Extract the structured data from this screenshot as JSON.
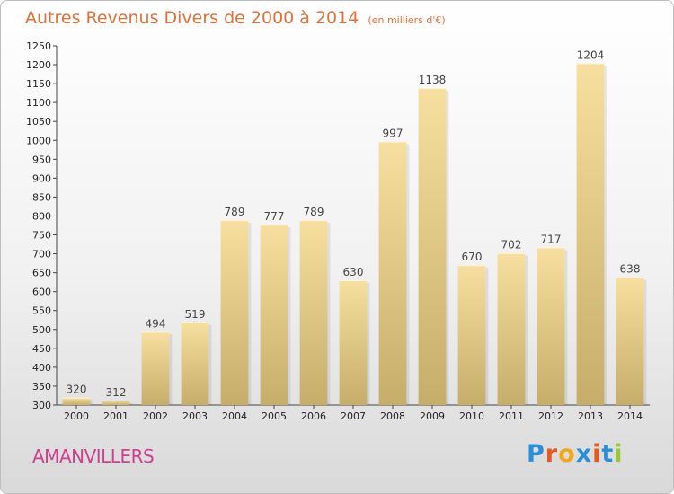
{
  "header": {
    "title": "Autres Revenus Divers de 2000 à 2014",
    "unit": "(en milliers d'€)"
  },
  "footer": {
    "commune": "AMANVILLERS",
    "logo_text": "Proxiti",
    "logo_colors": [
      "#2b8fd6",
      "#e8591e",
      "#f3a51b",
      "#2b8fd6",
      "#e8591e",
      "#2b8fd6",
      "#9bc63b"
    ]
  },
  "colors": {
    "bar_light": "#f7df9f",
    "bar_dark": "#c6ad6a",
    "axis": "#444444",
    "title": "#e0703a",
    "commune": "#cf3f8f"
  },
  "chart_data": {
    "type": "bar",
    "title": "Autres Revenus Divers de 2000 à 2014",
    "subtitle": "(en milliers d'€)",
    "categories": [
      "2000",
      "2001",
      "2002",
      "2003",
      "2004",
      "2005",
      "2006",
      "2007",
      "2008",
      "2009",
      "2010",
      "2011",
      "2012",
      "2013",
      "2014"
    ],
    "values": [
      320,
      312,
      494,
      519,
      789,
      777,
      789,
      630,
      997,
      1138,
      670,
      702,
      717,
      1204,
      638
    ],
    "ylim": [
      300,
      1250
    ],
    "yticks": [
      300,
      350,
      400,
      450,
      500,
      550,
      600,
      650,
      700,
      750,
      800,
      850,
      900,
      950,
      1000,
      1050,
      1100,
      1150,
      1200,
      1250
    ],
    "grid": false,
    "data_labels": true
  }
}
